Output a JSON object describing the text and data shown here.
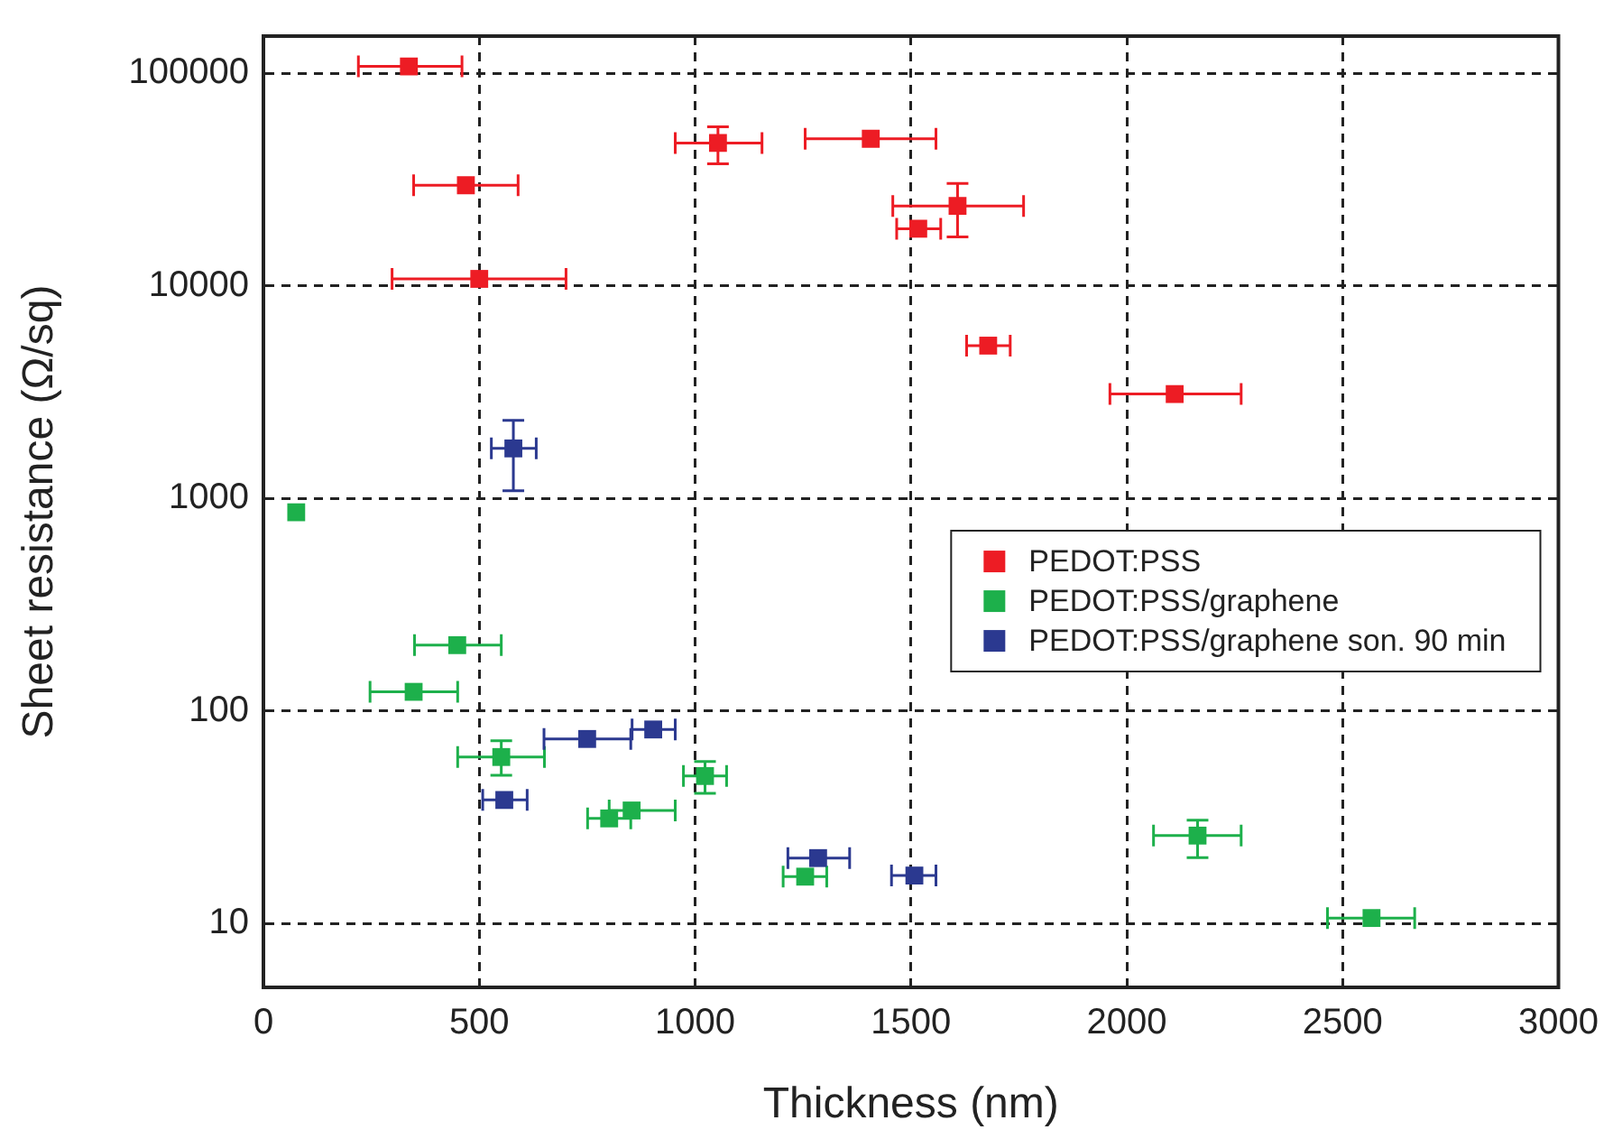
{
  "chart_data": {
    "type": "scatter",
    "xlabel": "Thickness (nm)",
    "ylabel": "Sheet resistance (Ω/sq)",
    "log": "y",
    "grid": true,
    "legend": "right",
    "marker": "square",
    "xlim": [
      0,
      3000
    ],
    "xticks": [
      0,
      500,
      1000,
      1500,
      2000,
      2500,
      3000
    ],
    "ylim": [
      5,
      150000
    ],
    "yticks": [
      10,
      100,
      1000,
      10000,
      100000
    ],
    "series": [
      {
        "name": "PEDOT:PSS",
        "color": "#ed1c24",
        "x": [
          337,
          469,
          500,
          1053,
          1407,
          1608,
          1517,
          1679,
          2111
        ],
        "values": [
          108000,
          29800,
          10800,
          47100,
          49300,
          23800,
          18600,
          5240,
          3100
        ],
        "errors": [
          null,
          null,
          null,
          [
            37600,
            56100
          ],
          null,
          [
            17000,
            30400
          ],
          null,
          null,
          null
        ],
        "xerrors": [
          [
            220,
            460
          ],
          [
            348,
            590
          ],
          [
            298,
            701
          ],
          [
            954,
            1155
          ],
          [
            1255,
            1558
          ],
          [
            1458,
            1761
          ],
          [
            1467,
            1569
          ],
          [
            1629,
            1730
          ],
          [
            1961,
            2265
          ]
        ]
      },
      {
        "name": "PEDOT:PSS/graphene",
        "color": "#1db04b",
        "x": [
          76,
          449,
          348,
          551,
          801,
          853,
          1023,
          1255,
          2164,
          2567
        ],
        "values": [
          861,
          204,
          123,
          60.7,
          31.2,
          34.0,
          49.4,
          16.6,
          25.9,
          10.6
        ],
        "errors": [
          null,
          null,
          null,
          [
            49.8,
            72.3
          ],
          null,
          null,
          [
            40.9,
            57.8
          ],
          null,
          [
            20.4,
            30.6
          ],
          null
        ],
        "xerrors": [
          null,
          [
            350,
            551
          ],
          [
            247,
            450
          ],
          [
            450,
            651
          ],
          [
            751,
            851
          ],
          [
            801,
            954
          ],
          [
            973,
            1073
          ],
          [
            1204,
            1305
          ],
          [
            2062,
            2265
          ],
          [
            2465,
            2667
          ]
        ]
      },
      {
        "name": "PEDOT:PSS/graphene son. 90 min",
        "color": "#2b3990",
        "x": [
          579,
          558,
          750,
          903,
          1285,
          1508
        ],
        "values": [
          1720,
          38.1,
          73.8,
          81.8,
          20.3,
          16.8
        ],
        "errors": [
          [
            1087,
            2330
          ],
          null,
          null,
          null,
          null,
          null
        ],
        "xerrors": [
          [
            528,
            632
          ],
          [
            508,
            611
          ],
          [
            650,
            851
          ],
          [
            854,
            954
          ],
          [
            1215,
            1358
          ],
          [
            1455,
            1558
          ]
        ]
      }
    ]
  }
}
